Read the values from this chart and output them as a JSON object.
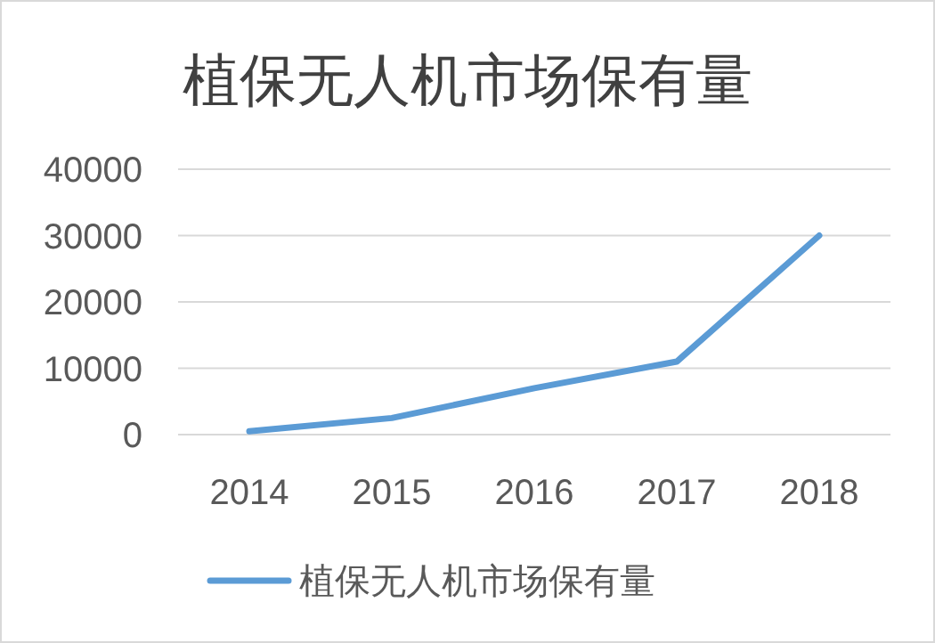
{
  "chart_data": {
    "type": "line",
    "title": "植保无人机市场保有量",
    "categories": [
      "2014",
      "2015",
      "2016",
      "2017",
      "2018"
    ],
    "series": [
      {
        "name": "植保无人机市场保有量",
        "color": "#5b9bd5",
        "values": [
          500,
          2500,
          7000,
          11000,
          30000
        ]
      }
    ],
    "ylim": [
      0,
      40000
    ],
    "yticks": [
      0,
      10000,
      20000,
      30000,
      40000
    ],
    "grid": "y",
    "legend": "bottom",
    "marker": "none",
    "line_style": "solid"
  }
}
